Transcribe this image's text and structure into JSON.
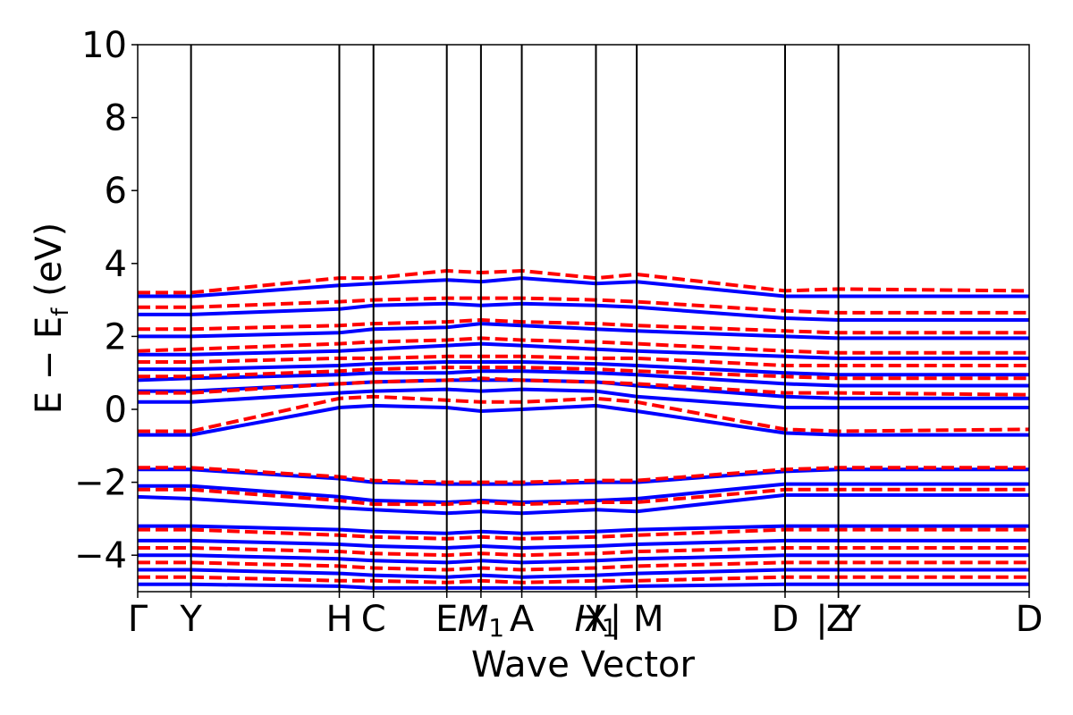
{
  "chart_data": {
    "type": "line",
    "title": "",
    "xlabel": "Wave Vector",
    "ylabel": "E − E",
    "ylabel_sub": "f",
    "ylabel_unit": " (eV)",
    "ylim": [
      -5,
      10
    ],
    "yticks": [
      -4,
      -2,
      0,
      2,
      4,
      6,
      8,
      10
    ],
    "ytick_labels": [
      "−4",
      "−2",
      "0",
      "2",
      "4",
      "6",
      "8",
      "10"
    ],
    "grid": false,
    "xlim": [
      0,
      10.7
    ],
    "kpoints": [
      {
        "x": 0.0,
        "label": "Γ",
        "sub": ""
      },
      {
        "x": 0.64,
        "label": "Y",
        "sub": ""
      },
      {
        "x": 2.42,
        "label": "H",
        "sub": ""
      },
      {
        "x": 2.83,
        "label": "C",
        "sub": ""
      },
      {
        "x": 3.71,
        "label": "E",
        "sub": ""
      },
      {
        "x": 4.12,
        "label": "M",
        "sub": "1"
      },
      {
        "x": 4.61,
        "label": "A",
        "sub": ""
      },
      {
        "x": 5.5,
        "label": "X",
        "sub": ""
      },
      {
        "x": 5.5,
        "label": "H",
        "sub": "1"
      },
      {
        "x": 5.99,
        "label": "| M",
        "sub": ""
      },
      {
        "x": 7.77,
        "label": "D",
        "sub": ""
      },
      {
        "x": 8.41,
        "label": "Z",
        "sub": ""
      },
      {
        "x": 8.41,
        "label": "| Y",
        "sub": ""
      },
      {
        "x": 10.7,
        "label": "D",
        "sub": ""
      }
    ],
    "series": [
      {
        "color": "#0000ff",
        "style": "solid",
        "x": [
          0.0,
          0.64,
          2.42,
          2.83,
          3.71,
          4.12,
          4.61,
          5.5,
          5.99,
          7.77,
          8.41,
          10.7
        ],
        "bands": [
          [
            -0.7,
            -0.7,
            0.05,
            0.1,
            0.05,
            -0.05,
            0.0,
            0.1,
            -0.05,
            -0.65,
            -0.7,
            -0.7
          ],
          [
            0.2,
            0.2,
            0.45,
            0.5,
            0.55,
            0.5,
            0.55,
            0.5,
            0.35,
            0.05,
            0.05,
            0.05
          ],
          [
            0.5,
            0.5,
            0.7,
            0.75,
            0.8,
            0.8,
            0.8,
            0.75,
            0.65,
            0.35,
            0.3,
            0.3
          ],
          [
            0.8,
            0.85,
            0.95,
            1.0,
            1.0,
            1.05,
            1.05,
            1.0,
            0.95,
            0.7,
            0.65,
            0.65
          ],
          [
            1.1,
            1.1,
            1.2,
            1.25,
            1.3,
            1.3,
            1.3,
            1.25,
            1.2,
            1.0,
            0.95,
            0.95
          ],
          [
            1.5,
            1.5,
            1.6,
            1.65,
            1.75,
            1.8,
            1.75,
            1.65,
            1.6,
            1.45,
            1.4,
            1.4
          ],
          [
            2.0,
            2.0,
            2.1,
            2.2,
            2.25,
            2.35,
            2.3,
            2.2,
            2.15,
            2.0,
            1.95,
            1.95
          ],
          [
            2.6,
            2.6,
            2.75,
            2.85,
            2.9,
            2.85,
            2.9,
            2.85,
            2.8,
            2.5,
            2.45,
            2.45
          ],
          [
            3.1,
            3.1,
            3.4,
            3.45,
            3.55,
            3.5,
            3.6,
            3.45,
            3.5,
            3.1,
            3.1,
            3.1
          ],
          [
            -1.65,
            -1.65,
            -1.9,
            -2.0,
            -2.05,
            -2.05,
            -2.05,
            -2.0,
            -2.0,
            -1.7,
            -1.65,
            -1.65
          ],
          [
            -2.1,
            -2.1,
            -2.4,
            -2.5,
            -2.55,
            -2.5,
            -2.55,
            -2.5,
            -2.45,
            -2.05,
            -2.05,
            -2.05
          ],
          [
            -2.4,
            -2.45,
            -2.7,
            -2.75,
            -2.85,
            -2.8,
            -2.85,
            -2.75,
            -2.8,
            -2.35,
            -2.35,
            -2.35
          ],
          [
            -3.2,
            -3.2,
            -3.3,
            -3.35,
            -3.4,
            -3.35,
            -3.4,
            -3.35,
            -3.3,
            -3.2,
            -3.2,
            -3.2
          ],
          [
            -3.6,
            -3.6,
            -3.7,
            -3.75,
            -3.8,
            -3.75,
            -3.8,
            -3.75,
            -3.7,
            -3.6,
            -3.6,
            -3.6
          ],
          [
            -4.0,
            -4.0,
            -4.1,
            -4.15,
            -4.2,
            -4.15,
            -4.2,
            -4.15,
            -4.1,
            -4.0,
            -4.0,
            -4.0
          ],
          [
            -4.4,
            -4.4,
            -4.5,
            -4.55,
            -4.6,
            -4.55,
            -4.6,
            -4.55,
            -4.5,
            -4.4,
            -4.4,
            -4.4
          ],
          [
            -4.8,
            -4.8,
            -4.85,
            -4.9,
            -4.9,
            -4.9,
            -4.9,
            -4.9,
            -4.85,
            -4.8,
            -4.8,
            -4.8
          ]
        ]
      },
      {
        "color": "#ff0000",
        "style": "dashed",
        "x": [
          0.0,
          0.64,
          2.42,
          2.83,
          3.71,
          4.12,
          4.61,
          5.5,
          5.99,
          7.77,
          8.41,
          10.7
        ],
        "bands": [
          [
            -0.6,
            -0.6,
            0.3,
            0.35,
            0.25,
            0.2,
            0.2,
            0.3,
            0.2,
            -0.55,
            -0.6,
            -0.55
          ],
          [
            0.45,
            0.45,
            0.7,
            0.75,
            0.8,
            0.85,
            0.8,
            0.75,
            0.7,
            0.45,
            0.45,
            0.4
          ],
          [
            0.9,
            0.9,
            1.05,
            1.1,
            1.15,
            1.15,
            1.15,
            1.1,
            1.05,
            0.9,
            0.85,
            0.85
          ],
          [
            1.3,
            1.3,
            1.4,
            1.4,
            1.45,
            1.45,
            1.45,
            1.4,
            1.4,
            1.2,
            1.2,
            1.2
          ],
          [
            1.6,
            1.65,
            1.8,
            1.85,
            1.9,
            1.95,
            1.9,
            1.85,
            1.8,
            1.6,
            1.55,
            1.55
          ],
          [
            2.2,
            2.2,
            2.3,
            2.35,
            2.4,
            2.45,
            2.4,
            2.35,
            2.3,
            2.15,
            2.1,
            2.1
          ],
          [
            2.8,
            2.8,
            2.95,
            3.0,
            3.05,
            3.05,
            3.05,
            3.0,
            2.95,
            2.7,
            2.65,
            2.65
          ],
          [
            3.2,
            3.2,
            3.6,
            3.6,
            3.8,
            3.75,
            3.8,
            3.6,
            3.7,
            3.25,
            3.3,
            3.25
          ],
          [
            -1.6,
            -1.6,
            -1.85,
            -1.95,
            -2.0,
            -2.0,
            -2.0,
            -1.95,
            -1.95,
            -1.65,
            -1.6,
            -1.6
          ],
          [
            -2.2,
            -2.2,
            -2.5,
            -2.6,
            -2.6,
            -2.55,
            -2.6,
            -2.55,
            -2.55,
            -2.2,
            -2.2,
            -2.2
          ],
          [
            -3.3,
            -3.3,
            -3.45,
            -3.5,
            -3.55,
            -3.5,
            -3.55,
            -3.5,
            -3.45,
            -3.3,
            -3.3,
            -3.3
          ],
          [
            -3.8,
            -3.8,
            -3.9,
            -3.95,
            -4.0,
            -3.95,
            -4.0,
            -3.95,
            -3.9,
            -3.8,
            -3.8,
            -3.8
          ],
          [
            -4.2,
            -4.2,
            -4.3,
            -4.35,
            -4.4,
            -4.35,
            -4.4,
            -4.35,
            -4.3,
            -4.2,
            -4.2,
            -4.2
          ],
          [
            -4.6,
            -4.6,
            -4.7,
            -4.7,
            -4.75,
            -4.7,
            -4.75,
            -4.7,
            -4.7,
            -4.6,
            -4.6,
            -4.6
          ]
        ]
      }
    ]
  }
}
